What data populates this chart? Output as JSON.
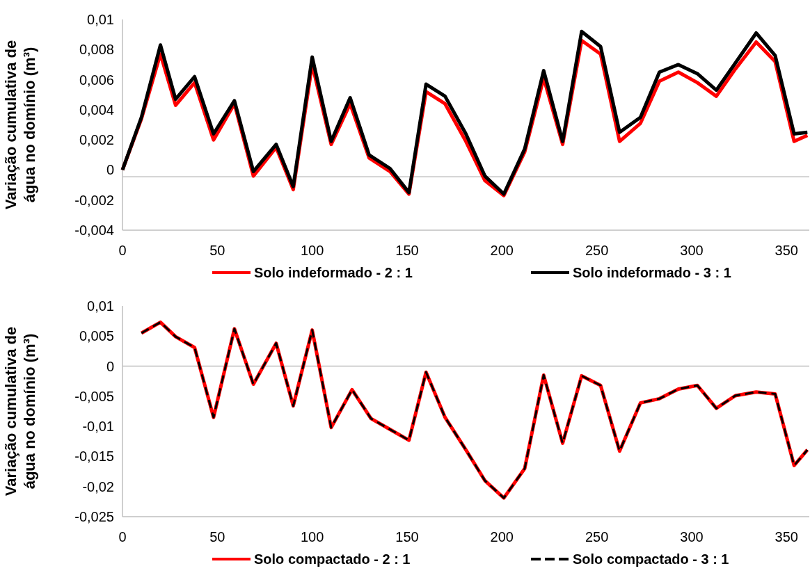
{
  "chart_data": [
    {
      "type": "line",
      "ylabel": "Variação cumulativa de água no domínio (m³)",
      "x": [
        0,
        10,
        20,
        28,
        38,
        48,
        59,
        69,
        81,
        90,
        100,
        110,
        120,
        130,
        141,
        151,
        160,
        170,
        181,
        191,
        201,
        212,
        222,
        232,
        242,
        252,
        262,
        273,
        283,
        293,
        303,
        313,
        323,
        334,
        344,
        354,
        361
      ],
      "series": [
        {
          "name": "Solo indeformado - 2 : 1",
          "color": "#ff0000",
          "line_style": "solid",
          "values": [
            0,
            0.0034,
            0.0077,
            0.0043,
            0.0058,
            0.002,
            0.0044,
            -0.0004,
            0.0015,
            -0.0013,
            0.007,
            0.0017,
            0.0044,
            0.0008,
            -0.0001,
            -0.0016,
            0.0052,
            0.0044,
            0.0019,
            -0.0007,
            -0.0017,
            0.0012,
            0.0061,
            0.0017,
            0.0086,
            0.0077,
            0.0019,
            0.0031,
            0.0059,
            0.0065,
            0.0058,
            0.0049,
            0.0067,
            0.0085,
            0.0072,
            0.0019,
            0.0023
          ]
        },
        {
          "name": "Solo indeformado - 3 : 1",
          "color": "#000000",
          "line_style": "solid",
          "values": [
            0,
            0.0035,
            0.0083,
            0.0047,
            0.0062,
            0.0024,
            0.0046,
            -0.0001,
            0.0017,
            -0.0011,
            0.0075,
            0.0019,
            0.0048,
            0.001,
            0.0001,
            -0.0015,
            0.0057,
            0.0049,
            0.0024,
            -0.0004,
            -0.0016,
            0.0014,
            0.0066,
            0.0019,
            0.0092,
            0.0082,
            0.0025,
            0.0035,
            0.0065,
            0.007,
            0.0064,
            0.0053,
            0.0071,
            0.0091,
            0.0076,
            0.0024,
            0.0025
          ]
        }
      ],
      "xlim": [
        0,
        362
      ],
      "xticks": [
        0,
        50,
        100,
        150,
        200,
        250,
        300,
        350
      ],
      "ylim": [
        -0.004,
        0.01
      ],
      "yticks": [
        {
          "value": -0.004,
          "label": "-0,004"
        },
        {
          "value": -0.002,
          "label": "-0,002"
        },
        {
          "value": 0,
          "label": "0"
        },
        {
          "value": 0.002,
          "label": "0,002"
        },
        {
          "value": 0.004,
          "label": "0,004"
        },
        {
          "value": 0.006,
          "label": "0,006"
        },
        {
          "value": 0.008,
          "label": "0,008"
        },
        {
          "value": 0.01,
          "label": "0,01"
        }
      ],
      "ref_lines": [
        {
          "axis": "y",
          "value": -0.00045,
          "color": "#bfbfbf"
        }
      ],
      "grid": false,
      "legend": "bottom",
      "marker": "none"
    },
    {
      "type": "line",
      "ylabel": "Variação cumulativa de água no domínio (m³)",
      "x": [
        10,
        20,
        28,
        38,
        48,
        59,
        69,
        81,
        90,
        100,
        110,
        121,
        131,
        141,
        151,
        160,
        170,
        181,
        191,
        201,
        212,
        222,
        232,
        242,
        252,
        262,
        273,
        283,
        293,
        303,
        313,
        323,
        334,
        344,
        354,
        361
      ],
      "series": [
        {
          "name": "Solo compactado - 2 : 1",
          "color": "#ff0000",
          "line_style": "solid",
          "values": [
            0.0055,
            0.0073,
            0.0049,
            0.0031,
            -0.0085,
            0.0062,
            -0.003,
            0.0038,
            -0.0066,
            0.006,
            -0.0102,
            -0.0039,
            -0.0087,
            -0.0105,
            -0.0123,
            -0.001,
            -0.0085,
            -0.0139,
            -0.019,
            -0.0219,
            -0.017,
            -0.0015,
            -0.0128,
            -0.0016,
            -0.0032,
            -0.0141,
            -0.0061,
            -0.0054,
            -0.0038,
            -0.0032,
            -0.007,
            -0.0049,
            -0.0043,
            -0.0046,
            -0.0165,
            -0.0139
          ]
        },
        {
          "name": "Solo compactado - 3 : 1",
          "color": "#000000",
          "line_style": "dashed",
          "values": [
            0.0055,
            0.0073,
            0.0049,
            0.0031,
            -0.0085,
            0.0062,
            -0.003,
            0.0038,
            -0.0066,
            0.006,
            -0.0102,
            -0.0039,
            -0.0087,
            -0.0105,
            -0.0123,
            -0.001,
            -0.0085,
            -0.0139,
            -0.019,
            -0.0219,
            -0.017,
            -0.0015,
            -0.0128,
            -0.0016,
            -0.0032,
            -0.0141,
            -0.0061,
            -0.0054,
            -0.0038,
            -0.0032,
            -0.007,
            -0.0049,
            -0.0043,
            -0.0046,
            -0.0165,
            -0.0139
          ]
        }
      ],
      "xlim": [
        0,
        362
      ],
      "xticks": [
        0,
        50,
        100,
        150,
        200,
        250,
        300,
        350
      ],
      "ylim": [
        -0.025,
        0.01
      ],
      "yticks": [
        {
          "value": -0.025,
          "label": "-0,025"
        },
        {
          "value": -0.02,
          "label": "-0,02"
        },
        {
          "value": -0.015,
          "label": "-0,015"
        },
        {
          "value": -0.01,
          "label": "-0,01"
        },
        {
          "value": -0.005,
          "label": "-0,005"
        },
        {
          "value": 0,
          "label": "0"
        },
        {
          "value": 0.005,
          "label": "0,005"
        },
        {
          "value": 0.01,
          "label": "0,01"
        }
      ],
      "ref_lines": [
        {
          "axis": "y",
          "value": 0,
          "color": "#bfbfbf"
        }
      ],
      "grid": false,
      "legend": "bottom",
      "marker": "none"
    }
  ]
}
